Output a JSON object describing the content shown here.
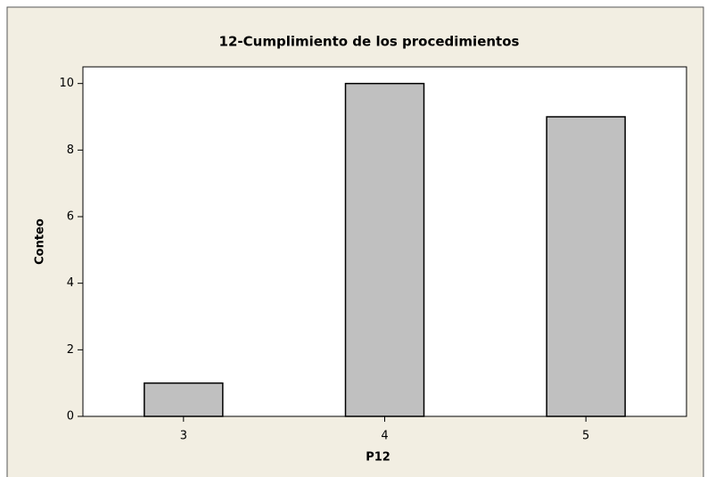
{
  "chart_data": {
    "type": "bar",
    "title": "12-Cumplimiento de los procedimientos",
    "x_label": "P12",
    "y_label": "Conteo",
    "categories": [
      "3",
      "4",
      "5"
    ],
    "values": [
      1,
      10,
      9
    ],
    "color": "#c0c0c0",
    "ylim": [
      0,
      10.5
    ],
    "yticks": [
      0,
      2,
      4,
      6,
      8,
      10
    ],
    "grid": false
  }
}
